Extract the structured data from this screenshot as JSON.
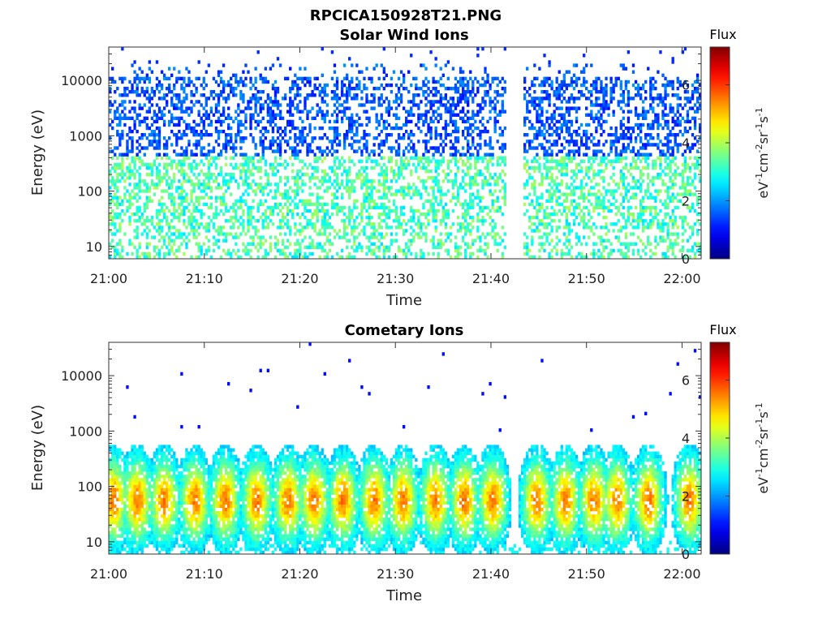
{
  "figure_title": "RPCICA150928T21.PNG",
  "chart_data": [
    {
      "type": "heatmap",
      "title": "Solar Wind Ions",
      "xlabel": "Time",
      "ylabel": "Energy (eV)",
      "x_ticks": [
        "21:00",
        "21:10",
        "21:20",
        "21:30",
        "21:40",
        "21:50",
        "22:00"
      ],
      "x_range_minutes": [
        0,
        62
      ],
      "y_scale": "log",
      "y_ticks": [
        10,
        100,
        1000,
        10000
      ],
      "y_tick_labels": [
        "10",
        "100",
        "1000",
        "10000"
      ],
      "y_range_eV": [
        6,
        40000
      ],
      "data_gap_minutes": [
        41.5,
        43.5
      ],
      "colorbar": {
        "title": "Flux",
        "label": "eV⁻¹cm⁻²sr⁻¹s⁻¹",
        "ticks": [
          "0",
          "2",
          "4",
          "6"
        ],
        "range": [
          0,
          7.3
        ],
        "colormap": "jet"
      },
      "colorbar_label_parts": [
        "eV",
        "-1",
        "cm",
        "-2",
        "sr",
        "-1",
        "s",
        "-1"
      ],
      "description_of_values": {
        "low_energy_band_eV": [
          6,
          400
        ],
        "low_energy_flux": [
          2.5,
          4.0
        ],
        "high_energy_band_eV": [
          400,
          20000
        ],
        "high_energy_flux": [
          1.0,
          2.0
        ]
      },
      "grid": false
    },
    {
      "type": "heatmap",
      "title": "Cometary Ions",
      "xlabel": "Time",
      "ylabel": "Energy (eV)",
      "x_ticks": [
        "21:00",
        "21:10",
        "21:20",
        "21:30",
        "21:40",
        "21:50",
        "22:00"
      ],
      "x_range_minutes": [
        0,
        62
      ],
      "y_scale": "log",
      "y_ticks": [
        10,
        100,
        1000,
        10000
      ],
      "y_tick_labels": [
        "10",
        "100",
        "1000",
        "10000"
      ],
      "y_range_eV": [
        6,
        40000
      ],
      "colorbar": {
        "title": "Flux",
        "label": "eV⁻¹cm⁻²sr⁻¹s⁻¹",
        "ticks": [
          "0",
          "2",
          "4",
          "6"
        ],
        "range": [
          0,
          7.3
        ],
        "colormap": "jet"
      },
      "colorbar_label_parts": [
        "eV",
        "-1",
        "cm",
        "-2",
        "sr",
        "-1",
        "s",
        "-1"
      ],
      "bursts_minutes": [
        0.5,
        3.0,
        5.8,
        9.0,
        12.2,
        15.5,
        18.8,
        21.5,
        24.5,
        27.8,
        30.8,
        34.2,
        37.2,
        40.2,
        44.8,
        47.8,
        50.8,
        53.2,
        56.5,
        60.8
      ],
      "burst_peak_energy_eV": [
        30,
        300
      ],
      "burst_peak_flux": 5.5,
      "grid": false
    }
  ]
}
